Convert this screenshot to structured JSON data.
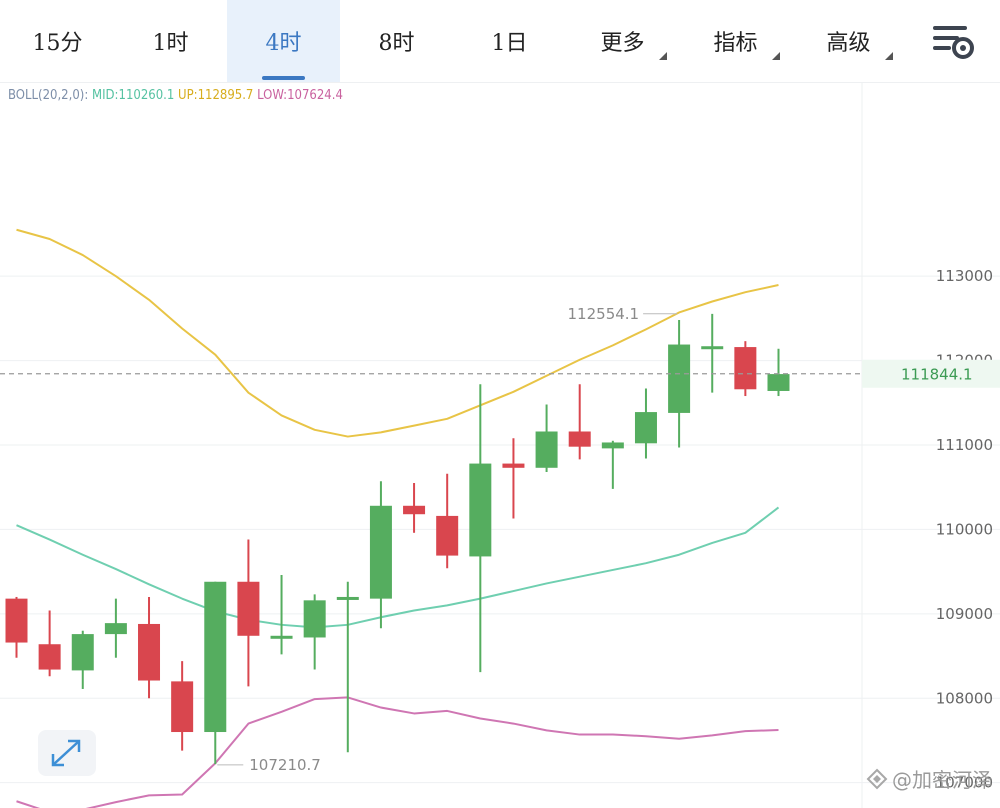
{
  "tabs": [
    {
      "label": "15分",
      "active": false,
      "dropdown": false
    },
    {
      "label": "1时",
      "active": false,
      "dropdown": false
    },
    {
      "label": "4时",
      "active": true,
      "dropdown": false
    },
    {
      "label": "8时",
      "active": false,
      "dropdown": false
    },
    {
      "label": "1日",
      "active": false,
      "dropdown": false
    },
    {
      "label": "更多",
      "active": false,
      "dropdown": true
    },
    {
      "label": "指标",
      "active": false,
      "dropdown": true
    },
    {
      "label": "高级",
      "active": false,
      "dropdown": true
    }
  ],
  "legend": {
    "name": "BOLL(20,2,0):",
    "mid_label": "MID:",
    "mid_value": "110260.1",
    "up_label": "UP:",
    "up_value": "112895.7",
    "low_label": "LOW:",
    "low_value": "107624.4"
  },
  "colors": {
    "up_candle": "#55ad5f",
    "down_candle": "#d9464e",
    "mid_line": "#6fcfb0",
    "up_line": "#e8c446",
    "low_line": "#cf76b3",
    "legend_name": "#7d8ea8",
    "active_tab": "#3b78c2",
    "grid": "#eef0f2"
  },
  "watermark": "@加密河泽",
  "chart_data": {
    "type": "candlestick",
    "ylim": [
      106700,
      115300
    ],
    "yticks": [
      113000,
      112000,
      111000,
      110000,
      109000,
      108000,
      107000
    ],
    "current_price": 111844.1,
    "current_price_label": "111844.1",
    "max_label": {
      "value": 112554.1,
      "text": "112554.1",
      "candle_index": 20
    },
    "min_label": {
      "value": 107210.7,
      "text": "107210.7",
      "candle_index": 6
    },
    "candles": [
      {
        "o": 109180,
        "h": 109200,
        "l": 108480,
        "c": 108660
      },
      {
        "o": 108640,
        "h": 109040,
        "l": 108260,
        "c": 108340
      },
      {
        "o": 108330,
        "h": 108800,
        "l": 108110,
        "c": 108760
      },
      {
        "o": 108760,
        "h": 109180,
        "l": 108480,
        "c": 108890
      },
      {
        "o": 108880,
        "h": 109200,
        "l": 108000,
        "c": 108210
      },
      {
        "o": 108200,
        "h": 108440,
        "l": 107380,
        "c": 107600
      },
      {
        "o": 107600,
        "h": 109380,
        "l": 107220,
        "c": 109380
      },
      {
        "o": 109380,
        "h": 109880,
        "l": 108140,
        "c": 108740
      },
      {
        "o": 108730,
        "h": 109460,
        "l": 108520,
        "c": 108740
      },
      {
        "o": 108720,
        "h": 109230,
        "l": 108340,
        "c": 109160
      },
      {
        "o": 109180,
        "h": 109380,
        "l": 107360,
        "c": 109200
      },
      {
        "o": 109180,
        "h": 110570,
        "l": 108830,
        "c": 110280
      },
      {
        "o": 110280,
        "h": 110550,
        "l": 109960,
        "c": 110180
      },
      {
        "o": 110160,
        "h": 110660,
        "l": 109540,
        "c": 109690
      },
      {
        "o": 109680,
        "h": 111720,
        "l": 108310,
        "c": 110780
      },
      {
        "o": 110780,
        "h": 111080,
        "l": 110130,
        "c": 110730
      },
      {
        "o": 110730,
        "h": 111480,
        "l": 110680,
        "c": 111160
      },
      {
        "o": 111160,
        "h": 111720,
        "l": 110830,
        "c": 110980
      },
      {
        "o": 110960,
        "h": 111050,
        "l": 110480,
        "c": 111030
      },
      {
        "o": 111020,
        "h": 111670,
        "l": 110840,
        "c": 111390
      },
      {
        "o": 111380,
        "h": 112480,
        "l": 110970,
        "c": 112190
      },
      {
        "o": 112170,
        "h": 112554,
        "l": 111620,
        "c": 112170
      },
      {
        "o": 112160,
        "h": 112230,
        "l": 111580,
        "c": 111660
      },
      {
        "o": 111640,
        "h": 112140,
        "l": 111580,
        "c": 111840
      }
    ],
    "boll_up": [
      113550,
      113440,
      113250,
      113000,
      112720,
      112380,
      112070,
      111620,
      111350,
      111180,
      111100,
      111150,
      111230,
      111310,
      111470,
      111630,
      111820,
      112010,
      112180,
      112370,
      112570,
      112700,
      112810,
      112895
    ],
    "boll_mid": [
      110050,
      109880,
      109700,
      109530,
      109350,
      109180,
      109030,
      108930,
      108870,
      108840,
      108870,
      108960,
      109040,
      109100,
      109180,
      109270,
      109360,
      109440,
      109520,
      109600,
      109700,
      109840,
      109960,
      110260
    ],
    "boll_low": [
      106780,
      106650,
      106680,
      106770,
      106850,
      106860,
      107230,
      107700,
      107840,
      107990,
      108010,
      107890,
      107820,
      107850,
      107760,
      107700,
      107620,
      107570,
      107570,
      107550,
      107520,
      107560,
      107610,
      107624
    ]
  }
}
